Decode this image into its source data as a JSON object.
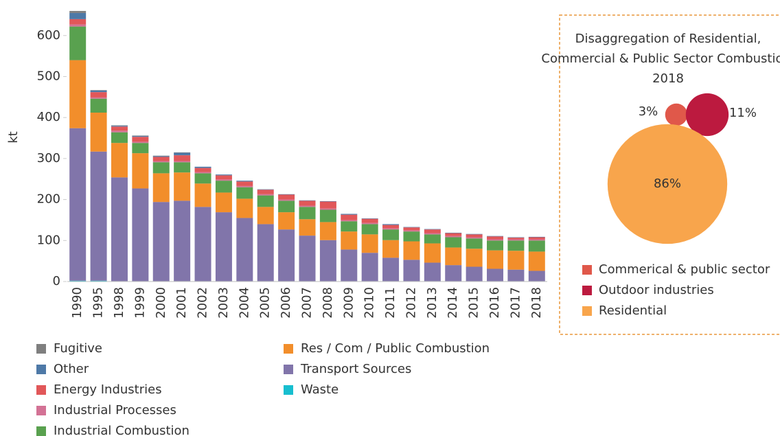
{
  "chart_data": [
    {
      "type": "bar",
      "stacked": true,
      "ylabel": "kt",
      "categories": [
        "1990",
        "1995",
        "1998",
        "1999",
        "2000",
        "2001",
        "2002",
        "2003",
        "2004",
        "2005",
        "2006",
        "2007",
        "2008",
        "2009",
        "2010",
        "2011",
        "2012",
        "2013",
        "2014",
        "2015",
        "2016",
        "2017",
        "2018"
      ],
      "ylim": [
        0,
        680
      ],
      "yticks": [
        0,
        100,
        200,
        300,
        400,
        500,
        600
      ],
      "series": [
        {
          "name": "Fugitive",
          "color": "#7f7f7f",
          "values": [
            5,
            1,
            1,
            1,
            1,
            1,
            0,
            0,
            0,
            0,
            0,
            0,
            0,
            0,
            0,
            0,
            0,
            0,
            0,
            0,
            0,
            0,
            0
          ]
        },
        {
          "name": "Other",
          "color": "#4e79a7",
          "values": [
            15,
            4,
            2,
            2,
            2,
            6,
            3,
            2,
            2,
            1,
            1,
            1,
            1,
            2,
            1,
            2,
            1,
            1,
            1,
            1,
            1,
            1,
            1
          ]
        },
        {
          "name": "Energy Industries",
          "color": "#e15759",
          "values": [
            13,
            13,
            10,
            12,
            10,
            14,
            10,
            10,
            11,
            11,
            12,
            12,
            17,
            13,
            10,
            8,
            7,
            9,
            7,
            7,
            7,
            4,
            5
          ]
        },
        {
          "name": "Industrial Processes",
          "color": "#d37295",
          "values": [
            5,
            3,
            4,
            3,
            3,
            3,
            3,
            3,
            3,
            3,
            3,
            3,
            3,
            3,
            3,
            3,
            3,
            3,
            3,
            3,
            3,
            3,
            3
          ]
        },
        {
          "name": "Industrial Combustion",
          "color": "#59a14f",
          "values": [
            82,
            34,
            26,
            25,
            27,
            25,
            25,
            29,
            28,
            28,
            28,
            30,
            30,
            25,
            25,
            26,
            24,
            22,
            25,
            25,
            24,
            25,
            27
          ]
        },
        {
          "name": "Res / Com / Public Combustion",
          "color": "#f28e2b",
          "values": [
            166,
            95,
            84,
            86,
            70,
            69,
            57,
            48,
            47,
            42,
            42,
            40,
            44,
            44,
            45,
            43,
            45,
            47,
            43,
            44,
            45,
            46,
            47
          ]
        },
        {
          "name": "Transport Sources",
          "color": "#8175aa",
          "values": [
            372,
            315,
            253,
            226,
            193,
            196,
            181,
            168,
            154,
            139,
            126,
            111,
            100,
            77,
            69,
            57,
            52,
            45,
            39,
            35,
            30,
            28,
            25
          ]
        },
        {
          "name": "Waste",
          "color": "#17becf",
          "values": [
            2,
            2,
            1,
            1,
            1,
            1,
            1,
            1,
            1,
            1,
            1,
            1,
            1,
            1,
            1,
            1,
            1,
            1,
            1,
            1,
            1,
            1,
            1
          ]
        }
      ]
    },
    {
      "type": "bubble",
      "title": "Disaggregation of Residential, Commercial & Public Sector Combustion, 2018",
      "categories": [
        "Commerical & public sector",
        "Outdoor industries",
        "Residential"
      ],
      "values": [
        3,
        11,
        86
      ],
      "value_labels": [
        "3%",
        "11%",
        "86%"
      ],
      "colors": [
        "#e0584a",
        "#bc1a3f",
        "#f8a54c"
      ]
    }
  ]
}
